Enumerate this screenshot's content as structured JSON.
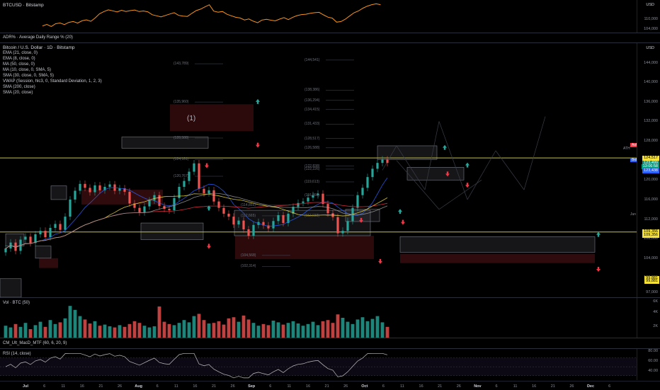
{
  "top": {
    "symbol": "BTCUSD · Bitstamp",
    "currency": "USD",
    "ticks": [
      "110,000",
      "104,000"
    ]
  },
  "adr": {
    "label": "ADR% · Average Daily Range % (20)"
  },
  "main": {
    "currency": "USD",
    "legend": [
      "Bitcoin / U.S. Dollar · 1D · Bitstamp",
      "EMA (21, close, 0)",
      "EMA (8, close, 0)",
      "MA (50, close, 0)",
      "MA (10, close, 0, SMA, 5)",
      "SMA (30, close, 0, SMA, 5)",
      "VWAP (Session, hlc3, 0, Standard Deviation, 1, 2, 3)",
      "SMA (200, close)",
      "SMA (20, close)"
    ],
    "price_ticks": [
      "144,000",
      "140,000",
      "136,000",
      "132,000",
      "128,000",
      "124,000",
      "120,000",
      "116,000",
      "112,000",
      "108,000",
      "104,000",
      "100,000",
      "96,000",
      "97,000"
    ],
    "price_tags": [
      {
        "text": "124,517",
        "bg": "#f7e23a",
        "fg": "#000"
      },
      {
        "text": "123,434",
        "bg": "#f23645",
        "fg": "#fff"
      },
      {
        "text": "123,499",
        "bg": "#089981",
        "fg": "#fff"
      },
      {
        "text": "13:06:58",
        "bg": "#089981",
        "fg": "#fff"
      },
      {
        "text": "123,438",
        "bg": "#2962ff",
        "fg": "#fff"
      },
      {
        "text": "109,356",
        "bg": "#f7e23a",
        "fg": "#000"
      },
      {
        "text": "109,356",
        "bg": "#f7e23a",
        "fg": "#000"
      },
      {
        "text": "99,881",
        "bg": "#f7e23a",
        "fg": "#000"
      },
      {
        "text": "99,881",
        "bg": "#f7e23a",
        "fg": "#000"
      }
    ],
    "ask_label": "Ask",
    "bid_label": "Bid",
    "ath_label": "ATH",
    "june_label": "Jun",
    "wave_label": "(1)",
    "level_labels": [
      "(144,541)",
      "(143,789)",
      "(138,386)",
      "(136,294)",
      "(135,960)",
      "(134,415)",
      "(131,433)",
      "(128,517)",
      "(128,588)",
      "(126,588)",
      "(124,181)",
      "(122,838)",
      "(122,226)",
      "(120,767)",
      "(119,613)",
      "(116,860)",
      "(114,855)",
      "(112,665)",
      "(112,688)",
      "(104,568)",
      "(102,314)"
    ]
  },
  "volume": {
    "label": "Vol · BTC (50)",
    "ticks": [
      "6K",
      "4K",
      "2K"
    ]
  },
  "macd": {
    "label": "CM_Ult_MacD_MTF (60, 6, 20, 9)"
  },
  "rsi": {
    "label": "RSI (14, close)",
    "ticks": [
      "80.00",
      "60.00",
      "40.00"
    ]
  },
  "x_axis": [
    "Jul",
    "6",
    "11",
    "16",
    "21",
    "26",
    "Aug",
    "6",
    "11",
    "16",
    "21",
    "26",
    "Sep",
    "6",
    "11",
    "16",
    "21",
    "26",
    "Oct",
    "6",
    "11",
    "16",
    "21",
    "26",
    "Nov",
    "6",
    "11",
    "16",
    "21",
    "26",
    "Dec",
    "6"
  ],
  "chart_data": {
    "type": "candlestick",
    "title": "Bitcoin / U.S. Dollar · 1D · Bitstamp",
    "x_range": [
      "Jun 24",
      "Dec 8"
    ],
    "ylim": [
      96000,
      148000
    ],
    "closes": [
      106000,
      107200,
      105500,
      107800,
      108400,
      107100,
      108900,
      109600,
      108300,
      110200,
      111000,
      109800,
      112500,
      116000,
      117800,
      119200,
      118400,
      117500,
      118900,
      117900,
      118600,
      119100,
      117800,
      118300,
      117600,
      115200,
      114300,
      113400,
      114600,
      115800,
      116900,
      114700,
      114100,
      113800,
      116300,
      118600,
      119800,
      121700,
      123400,
      118200,
      117300,
      117900,
      115600,
      114300,
      113100,
      112500,
      110900,
      111700,
      109900,
      108600,
      110800,
      111400,
      110700,
      110100,
      111600,
      112800,
      111200,
      113100,
      114500,
      115300,
      115600,
      116400,
      116900,
      117200,
      115100,
      113200,
      112400,
      109100,
      109600,
      111600,
      114300,
      116900,
      118400,
      120600,
      122300,
      123500,
      124200,
      123499
    ],
    "volume_k": [
      2.1,
      1.8,
      2.4,
      1.9,
      2.6,
      1.5,
      2.2,
      2.8,
      1.9,
      3.1,
      2.4,
      2.7,
      3.4,
      5.6,
      4.9,
      3.8,
      3.2,
      2.5,
      2.9,
      2.1,
      2.3,
      2.0,
      1.8,
      2.2,
      1.9,
      2.4,
      2.9,
      2.6,
      2.1,
      1.8,
      2.0,
      5.5,
      2.8,
      2.4,
      2.2,
      2.6,
      3.1,
      2.7,
      3.8,
      4.2,
      3.1,
      2.5,
      2.6,
      2.9,
      2.3,
      3.4,
      3.6,
      2.8,
      3.9,
      3.2,
      2.6,
      2.1,
      2.4,
      2.2,
      3.0,
      2.7,
      2.3,
      2.6,
      2.9,
      2.5,
      2.1,
      2.4,
      2.8,
      2.2,
      2.9,
      3.1,
      2.6,
      4.1,
      3.5,
      2.8,
      2.4,
      3.2,
      3.6,
      2.9,
      3.3,
      3.8,
      2.7,
      1.9
    ],
    "rsi_last": 70
  }
}
